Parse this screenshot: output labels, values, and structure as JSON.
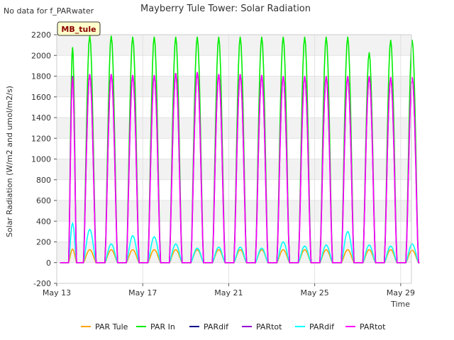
{
  "chart_data": {
    "type": "line",
    "title": "Mayberry Tule Tower: Solar Radiation",
    "corner_note": "No data for f_PARwater",
    "site_badge": "MB_tule",
    "xlabel": "Time",
    "ylabel": "Solar Radiation (W/m2 and umol/m2/s)",
    "ylim": [
      -200,
      2200
    ],
    "yticks": [
      -200,
      0,
      200,
      400,
      600,
      800,
      1000,
      1200,
      1400,
      1600,
      1800,
      2000,
      2200
    ],
    "xlim": [
      13,
      29.5
    ],
    "xticks": [
      {
        "value": 13,
        "label": "May 13"
      },
      {
        "value": 17,
        "label": "May 17"
      },
      {
        "value": 21,
        "label": "May 21"
      },
      {
        "value": 25,
        "label": "May 25"
      },
      {
        "value": 29,
        "label": "May 29"
      }
    ],
    "grid": true,
    "legend_position": "bottom",
    "day_starts": [
      13.5,
      14,
      15,
      16,
      17,
      18,
      19,
      20,
      21,
      22,
      23,
      24,
      25,
      26,
      27,
      28,
      29
    ],
    "series": [
      {
        "name": "PAR Tule",
        "color": "#FFA500",
        "peaks": [
          130,
          125,
          125,
          125,
          125,
          125,
          125,
          125,
          125,
          125,
          125,
          125,
          125,
          125,
          125,
          125,
          120
        ],
        "night": 0
      },
      {
        "name": "PAR In",
        "color": "#00EE00",
        "peaks": [
          2080,
          2190,
          2190,
          2180,
          2180,
          2180,
          2180,
          2180,
          2180,
          2180,
          2180,
          2180,
          2180,
          2180,
          2030,
          2150,
          2150
        ],
        "night": 0
      },
      {
        "name": "PARdif",
        "color": "#00008B",
        "peaks": [],
        "night": 0
      },
      {
        "name": "PARtot",
        "color": "#9400D3",
        "peaks": [
          1800,
          1820,
          1820,
          1810,
          1810,
          1830,
          1840,
          1820,
          1820,
          1810,
          1800,
          1800,
          1800,
          1800,
          1800,
          1790,
          1790
        ],
        "night": 0
      },
      {
        "name": "PARdif",
        "color": "#00FFFF",
        "peaks": [
          380,
          320,
          180,
          260,
          250,
          180,
          140,
          150,
          150,
          140,
          200,
          160,
          170,
          300,
          170,
          160,
          180
        ],
        "night": 0
      },
      {
        "name": "PARtot",
        "color": "#FF00FF",
        "peaks": [
          1790,
          1820,
          1820,
          1810,
          1810,
          1830,
          1840,
          1820,
          1820,
          1810,
          1800,
          1800,
          1800,
          1800,
          1800,
          1790,
          1790
        ],
        "night": 0
      }
    ]
  }
}
